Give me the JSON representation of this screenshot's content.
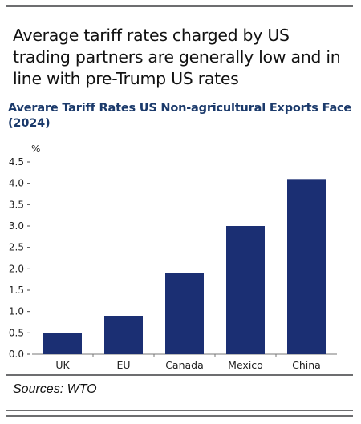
{
  "headline": "Average tariff rates charged by US trading partners are generally low and in line with pre-Trump US rates",
  "colors": {
    "bar": "#1b2f73",
    "subtitle": "#1b3a6b",
    "rule": "#6d6e70"
  },
  "source": "Sources: WTO",
  "chart_data": {
    "type": "bar",
    "title": "Averare Tariff Rates US Non-agricultural Exports Face (2024)",
    "ylabel": "%",
    "xlabel": "",
    "categories": [
      "UK",
      "EU",
      "Canada",
      "Mexico",
      "China"
    ],
    "values": [
      0.5,
      0.9,
      1.9,
      3.0,
      4.1
    ],
    "ylim": [
      0,
      4.5
    ],
    "yticks": [
      "0.0",
      "0.5",
      "1.0",
      "1.5",
      "2.0",
      "2.5",
      "3.0",
      "3.5",
      "4.0",
      "4.5"
    ],
    "grid": false,
    "legend": "none"
  }
}
